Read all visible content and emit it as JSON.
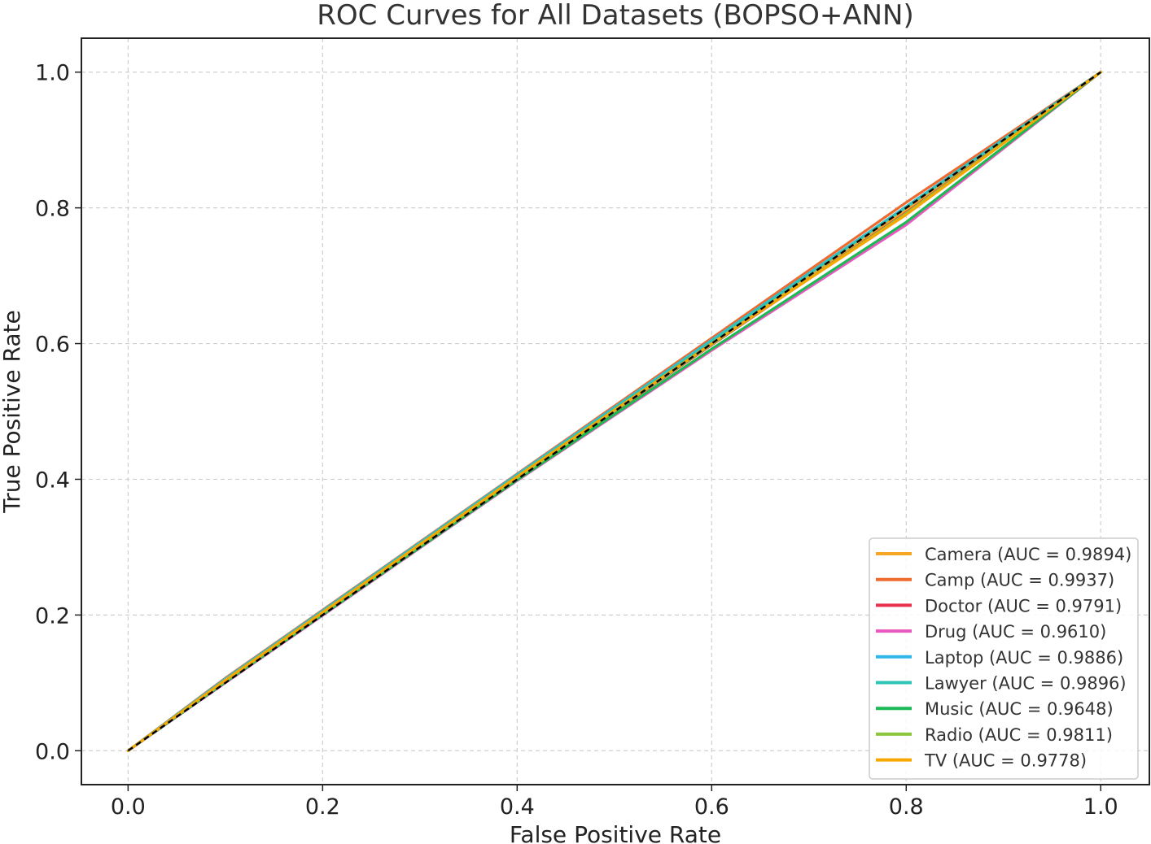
{
  "chart_data": {
    "type": "line",
    "title": "ROC Curves for All Datasets (BOPSO+ANN)",
    "xlabel": "False Positive Rate",
    "ylabel": "True Positive Rate",
    "xlim": [
      -0.048,
      1.05
    ],
    "ylim": [
      -0.05,
      1.05
    ],
    "xticks": [
      0.0,
      0.2,
      0.4,
      0.6,
      0.8,
      1.0
    ],
    "yticks": [
      0.0,
      0.2,
      0.4,
      0.6,
      0.8,
      1.0
    ],
    "xtick_labels": [
      "0.0",
      "0.2",
      "0.4",
      "0.6",
      "0.8",
      "1.0"
    ],
    "ytick_labels": [
      "0.0",
      "0.2",
      "0.4",
      "0.6",
      "0.8",
      "1.0"
    ],
    "grid": true,
    "legend_position": "lower-right",
    "series": [
      {
        "name": "Camera",
        "label": "Camera (AUC = 0.9894)",
        "color": "#f5a623",
        "x": [
          0,
          0.1,
          0.4,
          0.6,
          0.8,
          1.0
        ],
        "y": [
          0,
          0.103,
          0.403,
          0.601,
          0.797,
          1.0
        ]
      },
      {
        "name": "Camp",
        "label": "Camp (AUC = 0.9937)",
        "color": "#ee6b2f",
        "x": [
          0,
          0.1,
          0.4,
          0.6,
          0.8,
          1.0
        ],
        "y": [
          0,
          0.107,
          0.408,
          0.608,
          0.808,
          1.0
        ]
      },
      {
        "name": "Doctor",
        "label": "Doctor (AUC = 0.9791)",
        "color": "#e8304f",
        "x": [
          0,
          0.1,
          0.4,
          0.6,
          0.8,
          1.0
        ],
        "y": [
          0,
          0.102,
          0.401,
          0.598,
          0.793,
          1.0
        ]
      },
      {
        "name": "Drug",
        "label": "Drug (AUC = 0.9610)",
        "color": "#e858c0",
        "x": [
          0,
          0.1,
          0.4,
          0.6,
          0.8,
          1.0
        ],
        "y": [
          0,
          0.1,
          0.398,
          0.59,
          0.775,
          1.0
        ]
      },
      {
        "name": "Laptop",
        "label": "Laptop (AUC = 0.9886)",
        "color": "#2eb7e8",
        "x": [
          0,
          0.1,
          0.4,
          0.6,
          0.8,
          1.0
        ],
        "y": [
          0,
          0.106,
          0.407,
          0.605,
          0.802,
          1.0
        ]
      },
      {
        "name": "Lawyer",
        "label": "Lawyer (AUC = 0.9896)",
        "color": "#2ec4b6",
        "x": [
          0,
          0.1,
          0.4,
          0.6,
          0.8,
          1.0
        ],
        "y": [
          0,
          0.105,
          0.406,
          0.604,
          0.801,
          1.0
        ]
      },
      {
        "name": "Music",
        "label": "Music (AUC = 0.9648)",
        "color": "#1db954",
        "x": [
          0,
          0.1,
          0.4,
          0.6,
          0.8,
          1.0
        ],
        "y": [
          0,
          0.101,
          0.399,
          0.592,
          0.779,
          1.0
        ]
      },
      {
        "name": "Radio",
        "label": "Radio (AUC = 0.9811)",
        "color": "#8cc63f",
        "x": [
          0,
          0.1,
          0.4,
          0.6,
          0.8,
          1.0
        ],
        "y": [
          0,
          0.103,
          0.402,
          0.599,
          0.792,
          1.0
        ]
      },
      {
        "name": "TV",
        "label": "TV (AUC = 0.9778)",
        "color": "#f7a800",
        "x": [
          0,
          0.1,
          0.4,
          0.6,
          0.8,
          1.0
        ],
        "y": [
          0,
          0.104,
          0.404,
          0.6,
          0.79,
          1.0
        ]
      }
    ],
    "reference_line": {
      "color": "#000000",
      "x": [
        0,
        1
      ],
      "y": [
        0,
        1
      ]
    }
  }
}
